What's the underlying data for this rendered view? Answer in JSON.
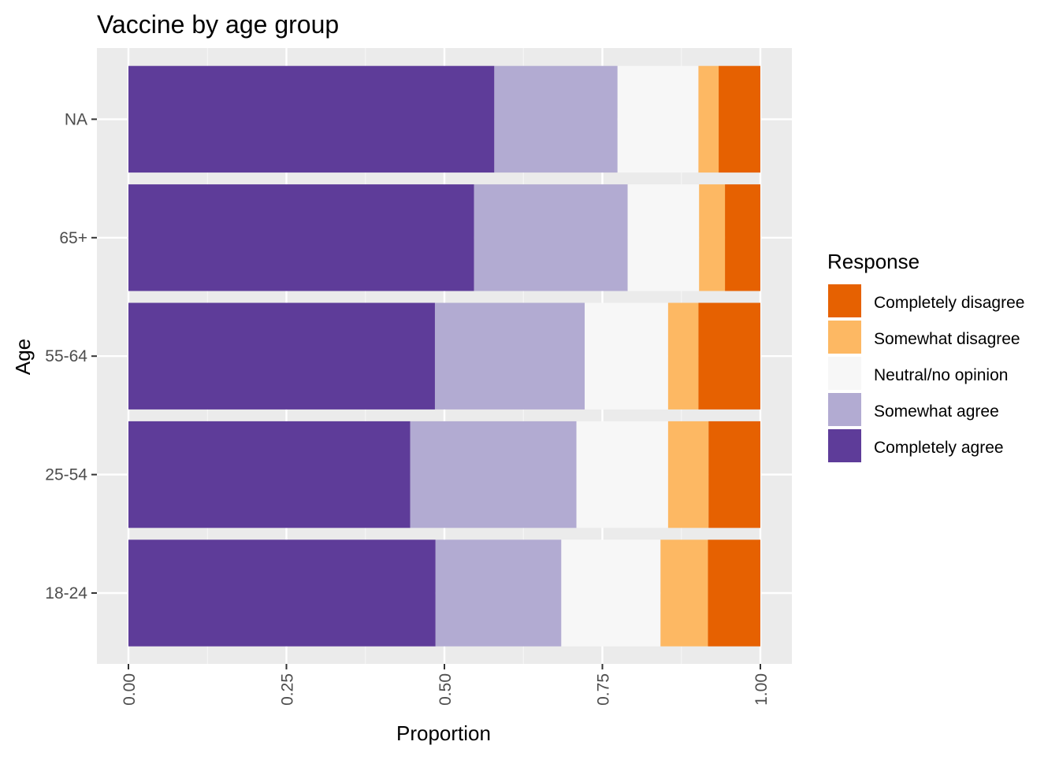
{
  "chart_data": {
    "type": "bar",
    "orientation": "horizontal",
    "stacked": true,
    "title": "Vaccine by age group",
    "xlabel": "Proportion",
    "ylabel": "Age",
    "xlim": [
      0,
      1
    ],
    "xticks": [
      "0.00",
      "0.25",
      "0.50",
      "0.75",
      "1.00"
    ],
    "categories": [
      "18-24",
      "25-54",
      "55-64",
      "65+",
      "NA"
    ],
    "grid": true,
    "legend": {
      "title": "Response",
      "placement": "right",
      "entries": [
        "Completely disagree",
        "Somewhat disagree",
        "Neutral/no opinion",
        "Somewhat agree",
        "Completely agree"
      ]
    },
    "series": [
      {
        "name": "Completely agree",
        "color": "#5E3C99",
        "values": [
          0.486,
          0.446,
          0.485,
          0.547,
          0.579
        ]
      },
      {
        "name": "Somewhat agree",
        "color": "#B2ABD2",
        "values": [
          0.199,
          0.263,
          0.237,
          0.243,
          0.195
        ]
      },
      {
        "name": "Neutral/no opinion",
        "color": "#F7F7F7",
        "values": [
          0.157,
          0.145,
          0.132,
          0.113,
          0.128
        ]
      },
      {
        "name": "Somewhat disagree",
        "color": "#FDB863",
        "values": [
          0.075,
          0.064,
          0.048,
          0.041,
          0.032
        ]
      },
      {
        "name": "Completely disagree",
        "color": "#E66101",
        "values": [
          0.083,
          0.082,
          0.098,
          0.056,
          0.066
        ]
      }
    ]
  }
}
